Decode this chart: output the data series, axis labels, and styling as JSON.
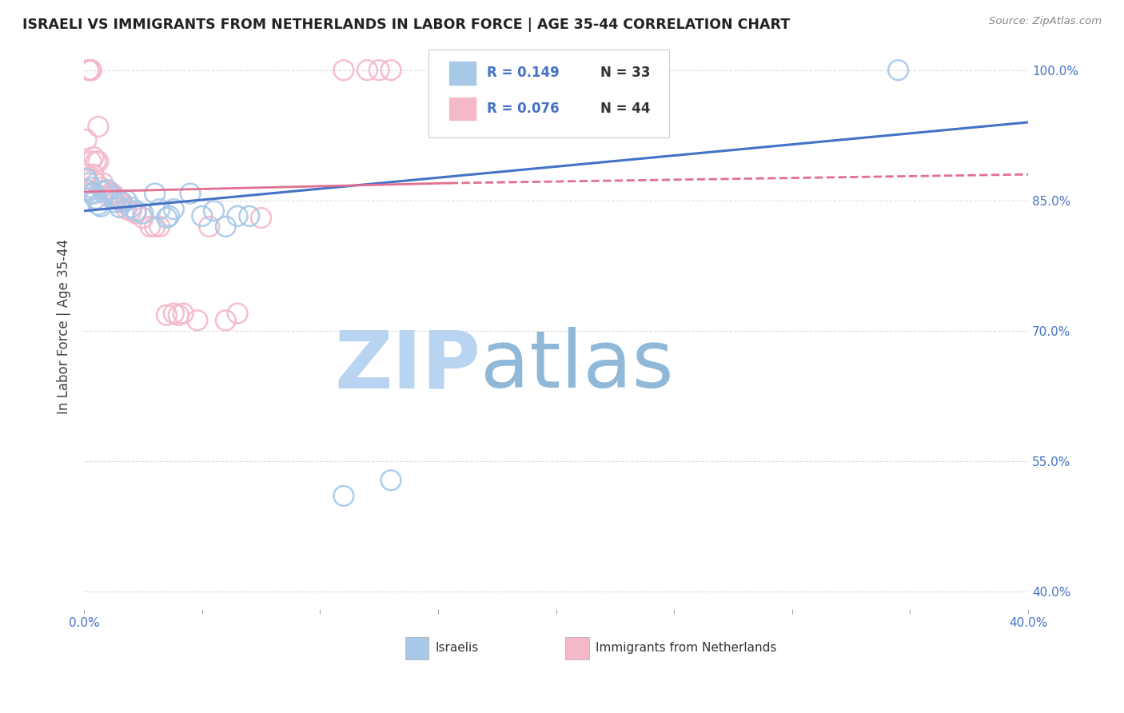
{
  "title": "ISRAELI VS IMMIGRANTS FROM NETHERLANDS IN LABOR FORCE | AGE 35-44 CORRELATION CHART",
  "source": "Source: ZipAtlas.com",
  "ylabel": "In Labor Force | Age 35-44",
  "xmin": 0.0,
  "xmax": 0.4,
  "ymin": 0.38,
  "ymax": 1.03,
  "yticks": [
    0.4,
    0.55,
    0.7,
    0.85,
    1.0
  ],
  "ytick_labels": [
    "40.0%",
    "55.0%",
    "70.0%",
    "85.0%",
    "100.0%"
  ],
  "xticks": [
    0.0,
    0.05,
    0.1,
    0.15,
    0.2,
    0.25,
    0.3,
    0.35,
    0.4
  ],
  "xtick_labels": [
    "0.0%",
    "",
    "",
    "",
    "",
    "",
    "",
    "",
    "40.0%"
  ],
  "watermark": "ZIPatlas",
  "legend_r_blue": "R = 0.149",
  "legend_n_blue": "N = 33",
  "legend_r_pink": "R = 0.076",
  "legend_n_pink": "N = 44",
  "legend_label_blue": "Israelis",
  "legend_label_pink": "Immigrants from Netherlands",
  "blue_x": [
    0.001,
    0.001,
    0.002,
    0.003,
    0.003,
    0.004,
    0.005,
    0.006,
    0.007,
    0.008,
    0.01,
    0.012,
    0.013,
    0.015,
    0.016,
    0.018,
    0.02,
    0.022,
    0.025,
    0.03,
    0.032,
    0.035,
    0.036,
    0.038,
    0.045,
    0.05,
    0.055,
    0.06,
    0.065,
    0.07,
    0.11,
    0.13,
    0.345
  ],
  "blue_y": [
    0.875,
    0.862,
    0.87,
    0.865,
    0.858,
    0.858,
    0.852,
    0.845,
    0.843,
    0.86,
    0.862,
    0.855,
    0.848,
    0.842,
    0.848,
    0.85,
    0.842,
    0.838,
    0.835,
    0.858,
    0.84,
    0.83,
    0.832,
    0.84,
    0.858,
    0.832,
    0.838,
    0.82,
    0.832,
    0.832,
    0.51,
    0.528,
    1.0
  ],
  "pink_x": [
    0.001,
    0.001,
    0.002,
    0.002,
    0.002,
    0.003,
    0.003,
    0.003,
    0.004,
    0.004,
    0.005,
    0.005,
    0.006,
    0.006,
    0.007,
    0.008,
    0.009,
    0.01,
    0.011,
    0.012,
    0.013,
    0.014,
    0.015,
    0.016,
    0.018,
    0.02,
    0.022,
    0.025,
    0.028,
    0.03,
    0.032,
    0.035,
    0.038,
    0.04,
    0.042,
    0.048,
    0.053,
    0.06,
    0.065,
    0.075,
    0.11,
    0.12,
    0.125,
    0.13
  ],
  "pink_y": [
    0.88,
    0.92,
    0.862,
    1.0,
    1.0,
    0.895,
    1.0,
    1.0,
    0.9,
    0.88,
    0.895,
    0.87,
    0.895,
    0.935,
    0.865,
    0.87,
    0.862,
    0.855,
    0.858,
    0.858,
    0.855,
    0.852,
    0.85,
    0.848,
    0.84,
    0.838,
    0.835,
    0.83,
    0.82,
    0.82,
    0.82,
    0.718,
    0.72,
    0.718,
    0.72,
    0.712,
    0.82,
    0.712,
    0.72,
    0.83,
    1.0,
    1.0,
    1.0,
    1.0
  ],
  "blue_color": "#a8c8e8",
  "pink_color": "#f4b8c8",
  "blue_line_color": "#4472c4",
  "pink_line_color": "#e07090",
  "blue_trend_x0": 0.0,
  "blue_trend_x1": 0.4,
  "blue_trend_y0": 0.838,
  "blue_trend_y1": 0.94,
  "pink_trend_x0": 0.0,
  "pink_trend_x1": 0.155,
  "pink_trend_y0": 0.86,
  "pink_trend_y1": 0.87,
  "title_color": "#222222",
  "axis_label_color": "#4472c4",
  "source_color": "#888888",
  "watermark_color_zip": "#b8d4f0",
  "watermark_color_atlas": "#90b8d8",
  "background_color": "#ffffff",
  "grid_color": "#dddddd"
}
